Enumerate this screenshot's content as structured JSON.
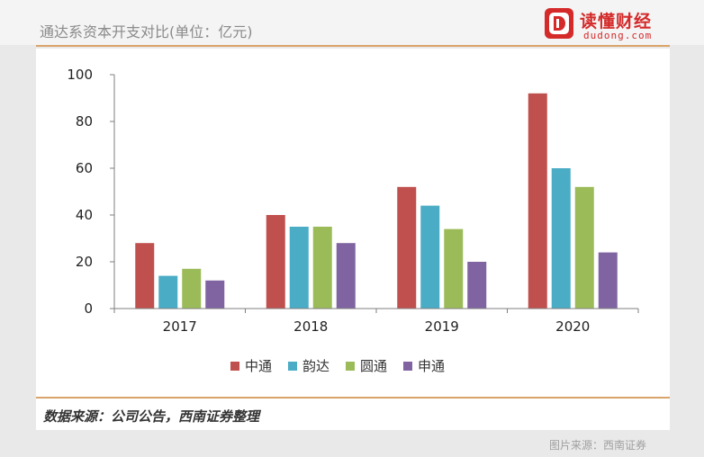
{
  "header": {
    "title": "通达系资本开支对比(单位：亿元)"
  },
  "logo": {
    "name_cn": "读懂财经",
    "domain": "dudong.com",
    "mark_icon": "dudong-d-logo-icon",
    "color": "#d42a2a"
  },
  "source_note": "数据来源：公司公告，西南证券整理",
  "footer_credit": "图片来源：西南证券",
  "chart_data": {
    "type": "bar",
    "title": "",
    "xlabel": "",
    "ylabel": "",
    "categories": [
      "2017",
      "2018",
      "2019",
      "2020"
    ],
    "ylim": [
      0,
      100
    ],
    "yticks": [
      0,
      20,
      40,
      60,
      80,
      100
    ],
    "grid": false,
    "legend_position": "bottom",
    "series": [
      {
        "name": "中通",
        "color": "#c0504d",
        "values": [
          28,
          40,
          52,
          92
        ]
      },
      {
        "name": "韵达",
        "color": "#4bacc6",
        "values": [
          14,
          35,
          44,
          60
        ]
      },
      {
        "name": "圆通",
        "color": "#9bbb59",
        "values": [
          17,
          35,
          34,
          52
        ]
      },
      {
        "name": "申通",
        "color": "#8064a2",
        "values": [
          12,
          28,
          20,
          24
        ]
      }
    ]
  }
}
